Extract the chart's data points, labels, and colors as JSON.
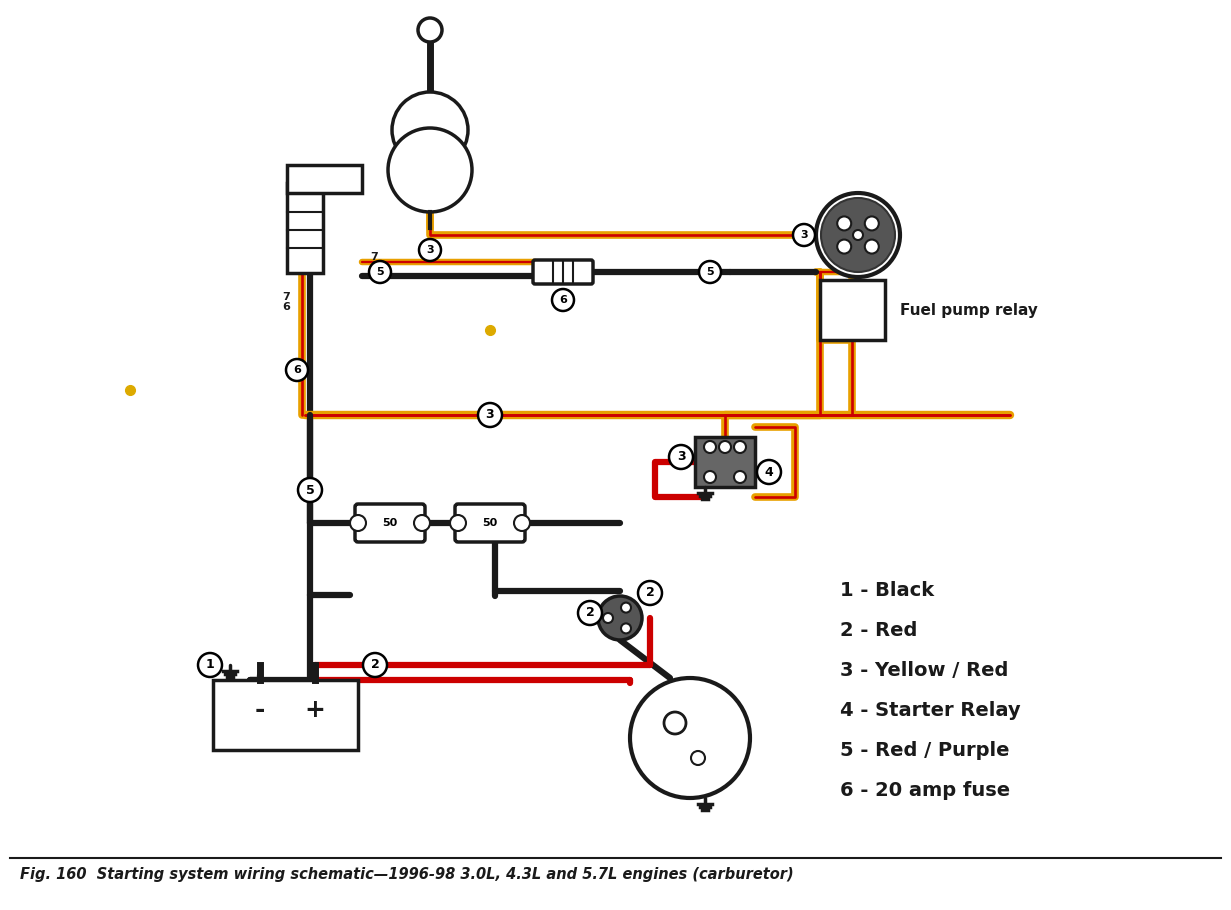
{
  "title": "Fig. 160  Starting system wiring schematic—1996-98 3.0L, 4.3L and 5.7L engines (carburetor)",
  "legend": [
    "1 - Black",
    "2 - Red",
    "3 - Yellow / Red",
    "4 - Starter Relay",
    "5 - Red / Purple",
    "6 - 20 amp fuse"
  ],
  "fuel_pump_relay_label": "Fuel pump relay",
  "bg_color": "#ffffff",
  "wire_black": "#1a1a1a",
  "wire_red": "#cc0000",
  "wire_yellow": "#e8a000",
  "wire_yr_stripe": "#cc0000",
  "label_color": "#1a1a1a",
  "yellow_dot1": [
    130,
    390
  ],
  "yellow_dot2": [
    490,
    330
  ]
}
